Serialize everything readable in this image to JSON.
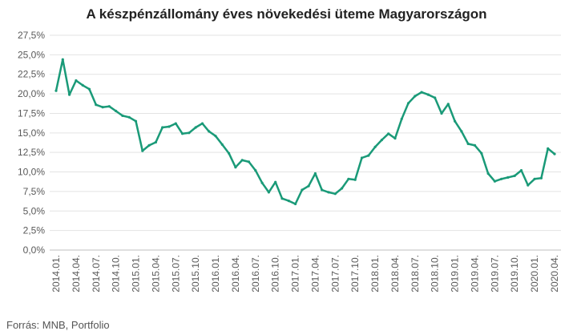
{
  "chart_data": {
    "type": "line",
    "title": "A készpénzállomány éves növekedési üteme Magyarországon",
    "source": "Forrás: MNB, Portfolio",
    "ylim": [
      0,
      27.5
    ],
    "y_ticks": [
      "0,0%",
      "2,5%",
      "5,0%",
      "7,5%",
      "10,0%",
      "12,5%",
      "15,0%",
      "17,5%",
      "20,0%",
      "22,5%",
      "25,0%",
      "27,5%"
    ],
    "x_ticks": [
      "2014.01.",
      "2014.04.",
      "2014.07.",
      "2014.10.",
      "2015.01.",
      "2015.04.",
      "2015.07.",
      "2015.10.",
      "2016.01.",
      "2016.04.",
      "2016.07.",
      "2016.10.",
      "2017.01.",
      "2017.04.",
      "2017.07.",
      "2017.10.",
      "2018.01.",
      "2018.04.",
      "2018.07.",
      "2018.10.",
      "2019.01.",
      "2019.04.",
      "2019.07.",
      "2019.10.",
      "2020.01.",
      "2020.04."
    ],
    "line_color": "#1a9a78",
    "grid": true,
    "series": [
      {
        "values": [
          20.4,
          24.4,
          19.9,
          21.7,
          21.1,
          20.6,
          18.6,
          18.3,
          18.4,
          17.8,
          17.2,
          17.0,
          16.5,
          12.7,
          13.4,
          13.8,
          15.7,
          15.8,
          16.2,
          14.9,
          15.0,
          15.7,
          16.2,
          15.2,
          14.6,
          13.5,
          12.4,
          10.6,
          11.5,
          11.3,
          10.2,
          8.6,
          7.4,
          8.7,
          6.6,
          6.3,
          5.9,
          7.7,
          8.2,
          9.8,
          7.7,
          7.4,
          7.2,
          7.9,
          9.1,
          9.0,
          11.8,
          12.1,
          13.2,
          14.1,
          14.9,
          14.3,
          16.8,
          18.8,
          19.7,
          20.2,
          19.9,
          19.5,
          17.5,
          18.7,
          16.5,
          15.2,
          13.6,
          13.4,
          12.4,
          9.8,
          8.8,
          9.1,
          9.3,
          9.5,
          10.2,
          8.3,
          9.1,
          9.2,
          13.0,
          12.3
        ]
      }
    ]
  }
}
